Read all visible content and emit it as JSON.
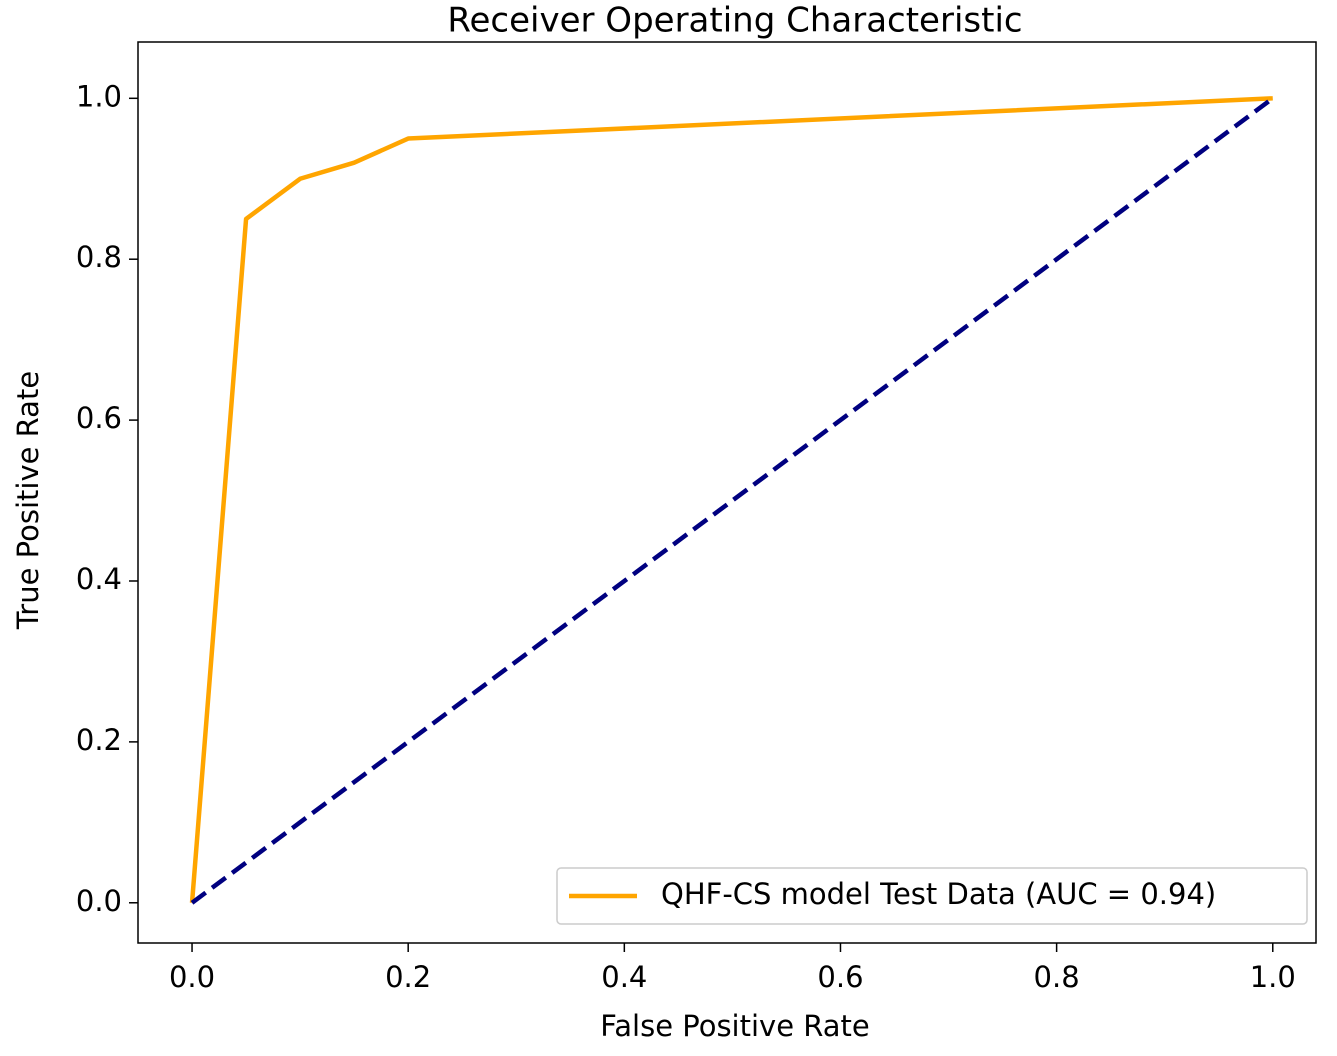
{
  "chart_data": {
    "type": "line",
    "title": "Receiver Operating Characteristic",
    "x_label": "False Positive Rate",
    "y_label": "True Positive Rate",
    "series": [
      {
        "name": "QHF-CS model Test Data (AUC = 0.94)",
        "color": "#ffa500",
        "style": "solid",
        "x": [
          0,
          0.05,
          0.1,
          0.15,
          0.2,
          1
        ],
        "values": [
          0,
          0.85,
          0.9,
          0.92,
          0.95,
          1
        ]
      },
      {
        "color": "#000080",
        "style": "dashed",
        "x": [
          0,
          1
        ],
        "values": [
          0,
          1
        ]
      }
    ],
    "xlim": [
      -0.05,
      1.04
    ],
    "ylim": [
      -0.05,
      1.07
    ],
    "xticks": [
      {
        "value": 0,
        "label": "0.0"
      },
      0.2,
      0.4,
      0.6,
      0.8,
      {
        "value": 1,
        "label": "1.0"
      }
    ],
    "yticks": [
      {
        "value": 0,
        "label": "0.0"
      },
      0.2,
      0.4,
      0.6,
      0.8,
      {
        "value": 1,
        "label": "1.0"
      }
    ],
    "grid": false,
    "legend": "lower right"
  }
}
